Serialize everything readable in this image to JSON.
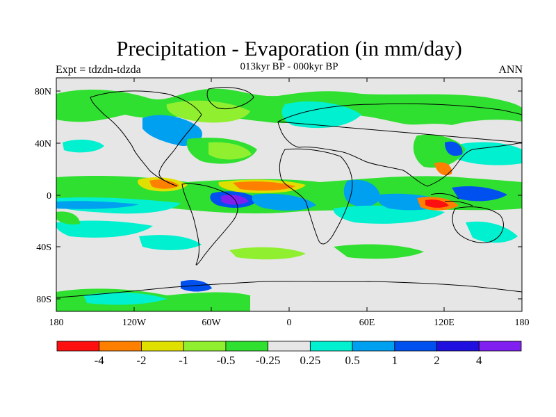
{
  "title": "Precipitation - Evaporation (in mm/day)",
  "subtitle": "013kyr BP - 000kyr BP",
  "left_label": "Expt = tdzdn-tdzda",
  "right_label": "ANN",
  "lat_ticks": [
    "80N",
    "40N",
    "0",
    "40S",
    "80S"
  ],
  "lon_ticks": [
    "180",
    "120W",
    "60W",
    "0",
    "60E",
    "120E",
    "180"
  ],
  "colorbar": {
    "colors": [
      "#ff1010",
      "#ff8000",
      "#e0e000",
      "#90f030",
      "#30e030",
      "#e6e6e6",
      "#00f0d0",
      "#00a0f0",
      "#0050f0",
      "#2010e0",
      "#8020f0"
    ],
    "labels": [
      "-4",
      "-2",
      "-1",
      "-0.5",
      "-0.25",
      "0.25",
      "0.5",
      "1",
      "2",
      "4"
    ]
  },
  "colors": {
    "background": "#e6e6e6",
    "coast": "#000000"
  }
}
